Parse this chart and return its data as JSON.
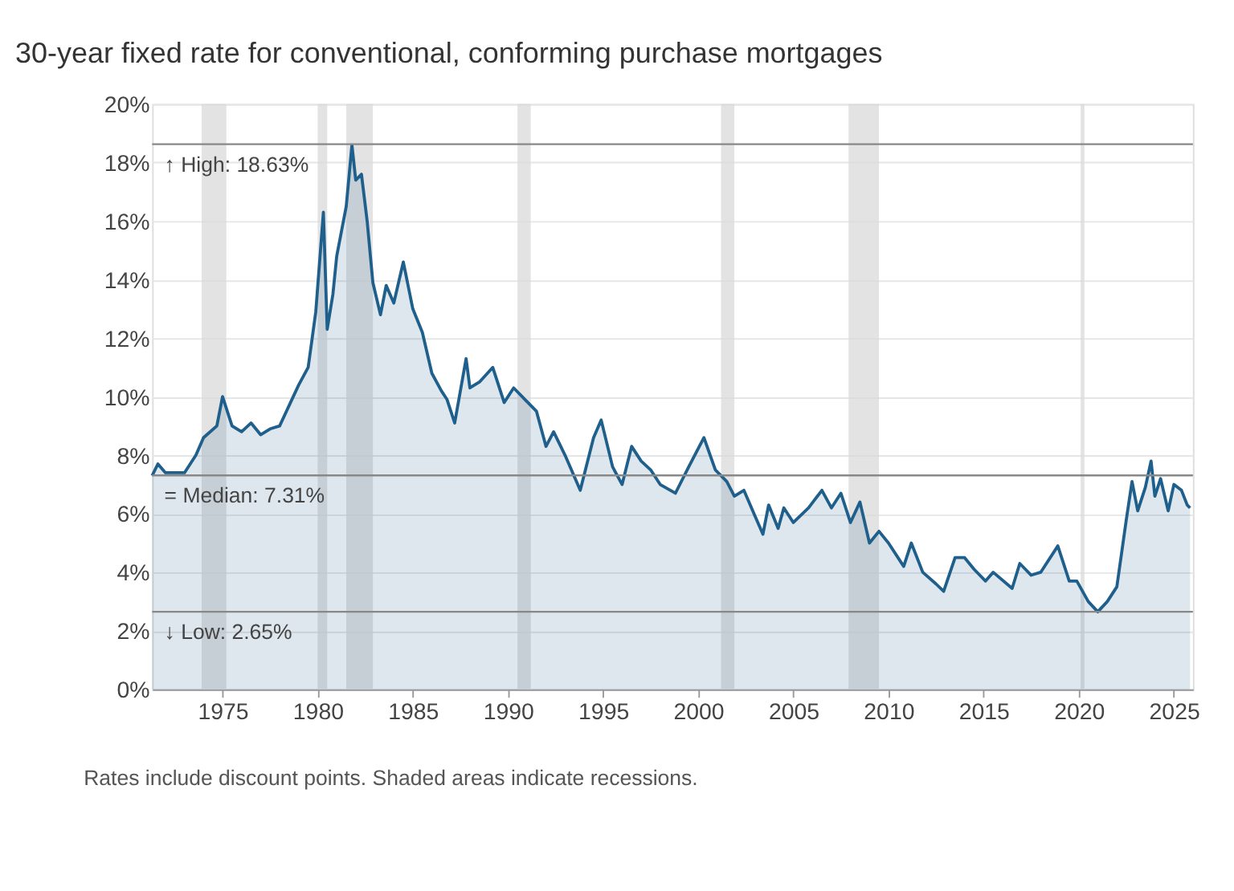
{
  "chart_data": {
    "type": "area",
    "title": "30-year fixed rate for conventional, conforming purchase mortgages",
    "annotations": [
      "Rates include discount points. Shaded areas indicate recessions."
    ],
    "x": [
      1971.3,
      1971.6,
      1972.0,
      1972.5,
      1973.0,
      1973.6,
      1974.0,
      1974.7,
      1975.0,
      1975.5,
      1976.0,
      1976.5,
      1977.0,
      1977.5,
      1978.0,
      1978.5,
      1979.0,
      1979.5,
      1979.9,
      1980.3,
      1980.5,
      1980.8,
      1981.0,
      1981.5,
      1981.8,
      1982.0,
      1982.3,
      1982.6,
      1982.9,
      1983.3,
      1983.6,
      1984.0,
      1984.5,
      1985.0,
      1985.5,
      1986.0,
      1986.5,
      1986.8,
      1987.2,
      1987.8,
      1988.0,
      1988.5,
      1989.2,
      1989.8,
      1990.3,
      1990.9,
      1991.5,
      1992.0,
      1992.4,
      1993.0,
      1993.8,
      1994.5,
      1994.9,
      1995.5,
      1996.0,
      1996.5,
      1997.0,
      1997.5,
      1998.0,
      1998.8,
      1999.5,
      2000.3,
      2000.9,
      2001.5,
      2001.9,
      2002.4,
      2003.0,
      2003.4,
      2003.7,
      2004.2,
      2004.5,
      2005.0,
      2005.8,
      2006.5,
      2007.0,
      2007.5,
      2008.0,
      2008.5,
      2009.0,
      2009.5,
      2010.0,
      2010.8,
      2011.2,
      2011.8,
      2012.5,
      2012.9,
      2013.5,
      2014.0,
      2014.5,
      2015.1,
      2015.5,
      2016.5,
      2016.9,
      2017.5,
      2018.0,
      2018.9,
      2019.5,
      2019.9,
      2020.5,
      2021.0,
      2021.5,
      2022.0,
      2022.5,
      2022.8,
      2023.1,
      2023.5,
      2023.8,
      2024.0,
      2024.3,
      2024.7,
      2025.0,
      2025.4,
      2025.7,
      2025.85
    ],
    "series": [
      {
        "color": "#1f5f8b",
        "values": [
          7.3,
          7.7,
          7.4,
          7.4,
          7.4,
          8.0,
          8.6,
          9.0,
          10.0,
          9.0,
          8.8,
          9.1,
          8.7,
          8.9,
          9.0,
          9.7,
          10.4,
          11.0,
          12.9,
          16.3,
          12.3,
          13.5,
          14.8,
          16.5,
          18.6,
          17.4,
          17.6,
          16.0,
          13.9,
          12.8,
          13.8,
          13.2,
          14.6,
          13.0,
          12.2,
          10.8,
          10.2,
          9.9,
          9.1,
          11.3,
          10.3,
          10.5,
          11.0,
          9.8,
          10.3,
          9.9,
          9.5,
          8.3,
          8.8,
          8.0,
          6.8,
          8.6,
          9.2,
          7.6,
          7.0,
          8.3,
          7.8,
          7.5,
          7.0,
          6.7,
          7.6,
          8.6,
          7.5,
          7.1,
          6.6,
          6.8,
          5.9,
          5.3,
          6.3,
          5.5,
          6.2,
          5.7,
          6.2,
          6.8,
          6.2,
          6.7,
          5.7,
          6.4,
          5.0,
          5.4,
          5.0,
          4.2,
          5.0,
          4.0,
          3.6,
          3.35,
          4.5,
          4.5,
          4.1,
          3.7,
          4.0,
          3.45,
          4.3,
          3.9,
          4.0,
          4.9,
          3.7,
          3.7,
          3.0,
          2.65,
          3.0,
          3.5,
          5.8,
          7.1,
          6.1,
          6.9,
          7.8,
          6.6,
          7.2,
          6.1,
          7.0,
          6.8,
          6.3,
          6.2
        ]
      }
    ],
    "xlim": [
      1971.3,
      2026.0
    ],
    "xticks": [
      1975,
      1980,
      1985,
      1990,
      1995,
      2000,
      2005,
      2010,
      2015,
      2020,
      2025
    ],
    "ylim": [
      0,
      20
    ],
    "yticks": [
      {
        "value": 0,
        "label": "0%"
      },
      {
        "value": 2,
        "label": "2%"
      },
      {
        "value": 4,
        "label": "4%"
      },
      {
        "value": 6,
        "label": "6%"
      },
      {
        "value": 8,
        "label": "8%"
      },
      {
        "value": 10,
        "label": "10%"
      },
      {
        "value": 12,
        "label": "12%"
      },
      {
        "value": 14,
        "label": "14%"
      },
      {
        "value": 16,
        "label": "16%"
      },
      {
        "value": 18,
        "label": "18%"
      },
      {
        "value": 20,
        "label": "20%"
      }
    ],
    "grid": "y",
    "ref_lines": [
      {
        "axis": "y",
        "value": 18.63,
        "label": "↑ High: 18.63%",
        "color": "#888888"
      },
      {
        "axis": "y",
        "value": 7.31,
        "label": "= Median: 7.31%",
        "color": "#888888"
      },
      {
        "axis": "y",
        "value": 2.65,
        "label": "↓ Low: 2.65%",
        "color": "#888888"
      }
    ],
    "bands": [
      {
        "axis": "x",
        "from": 1973.9,
        "to": 1975.2,
        "color": "#d9d9d9"
      },
      {
        "axis": "x",
        "from": 1980.0,
        "to": 1980.5,
        "color": "#d9d9d9"
      },
      {
        "axis": "x",
        "from": 1981.5,
        "to": 1982.9,
        "color": "#d9d9d9"
      },
      {
        "axis": "x",
        "from": 1990.5,
        "to": 1991.2,
        "color": "#d9d9d9"
      },
      {
        "axis": "x",
        "from": 2001.2,
        "to": 2001.9,
        "color": "#d9d9d9"
      },
      {
        "axis": "x",
        "from": 2007.9,
        "to": 2009.5,
        "color": "#d9d9d9"
      },
      {
        "axis": "x",
        "from": 2020.1,
        "to": 2020.3,
        "color": "#d9d9d9"
      }
    ]
  }
}
